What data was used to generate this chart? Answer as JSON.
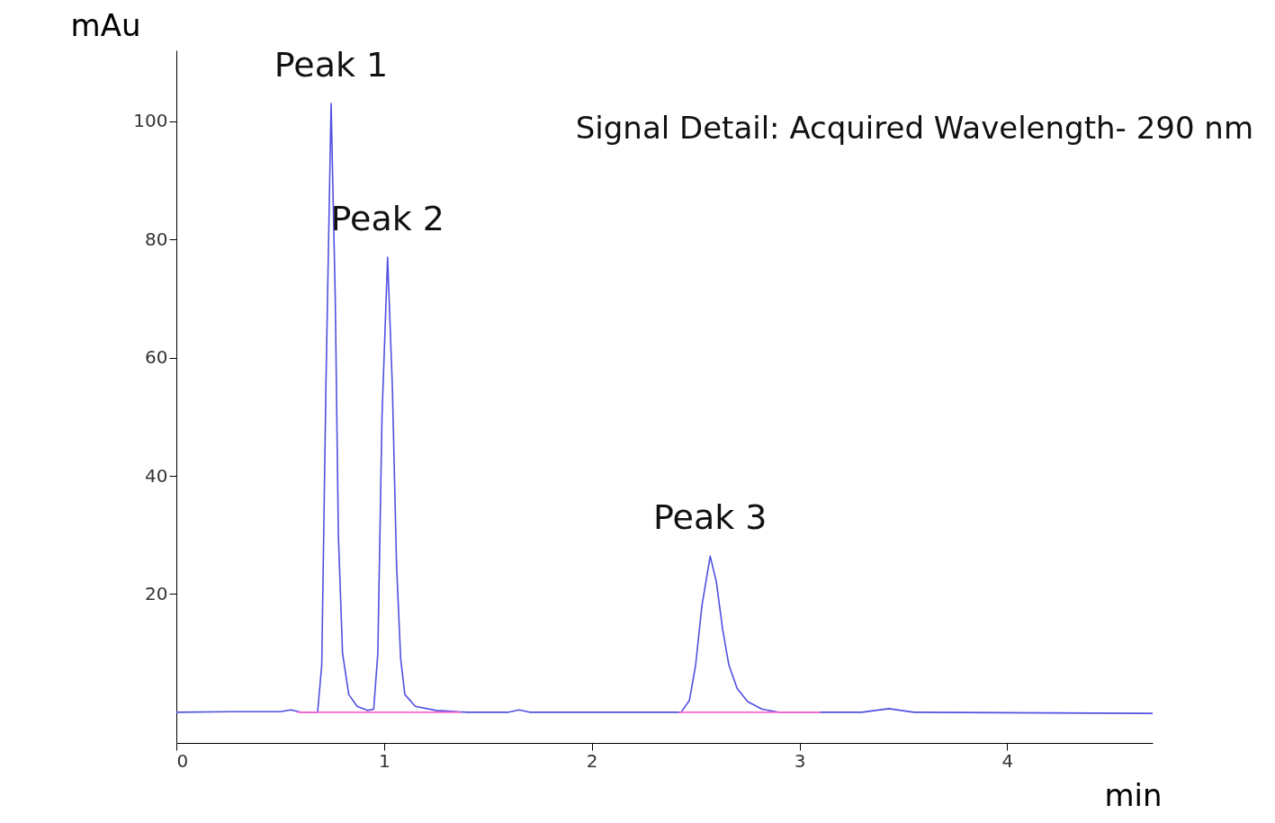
{
  "chart_data": {
    "type": "line",
    "xlabel": "min",
    "ylabel": "mAu",
    "xlim": [
      0,
      4.7
    ],
    "ylim": [
      -5.2,
      112
    ],
    "xticks": [
      0,
      1,
      2,
      3,
      4
    ],
    "yticks": [
      20,
      40,
      60,
      80,
      100
    ],
    "grid": false,
    "marker": "none",
    "line_style": "solid",
    "series": [
      {
        "color": "#5050e0",
        "x": [
          0,
          0.3,
          0.5,
          0.55,
          0.6,
          0.68,
          0.7,
          0.72,
          0.745,
          0.765,
          0.78,
          0.8,
          0.83,
          0.87,
          0.92,
          0.95,
          0.97,
          0.99,
          1.017,
          1.04,
          1.06,
          1.08,
          1.1,
          1.15,
          1.25,
          1.4,
          1.6,
          1.65,
          1.7,
          2.43,
          2.47,
          2.5,
          2.53,
          2.57,
          2.6,
          2.63,
          2.66,
          2.7,
          2.75,
          2.82,
          2.9,
          3.3,
          3.43,
          3.55,
          4.7
        ],
        "values": [
          0,
          0.1,
          0.1,
          0.4,
          0,
          0,
          8,
          55,
          103,
          70,
          30,
          10,
          3,
          1,
          0.3,
          0.5,
          10,
          50,
          77,
          55,
          25,
          9,
          3,
          1,
          0.3,
          0,
          0,
          0.4,
          0,
          0,
          2,
          8,
          18,
          26.4,
          22,
          14,
          8,
          4,
          1.8,
          0.5,
          0,
          0,
          0.6,
          0,
          -0.2
        ]
      },
      {
        "color": "#ff66cc",
        "x": [
          0.58,
          0.93,
          1.37
        ],
        "values": [
          0,
          0,
          0
        ]
      },
      {
        "color": "#ff66cc",
        "x": [
          2.42,
          3.1
        ],
        "values": [
          0,
          0
        ]
      }
    ],
    "annotations": [
      {
        "text": "Peak 1",
        "x": 0.745,
        "y": 103
      },
      {
        "text": "Peak 2",
        "x": 1.017,
        "y": 77
      },
      {
        "text": "Peak 3",
        "x": 2.57,
        "y": 26.4
      },
      "Signal Detail: Acquired Wavelength- 290 nm"
    ]
  }
}
